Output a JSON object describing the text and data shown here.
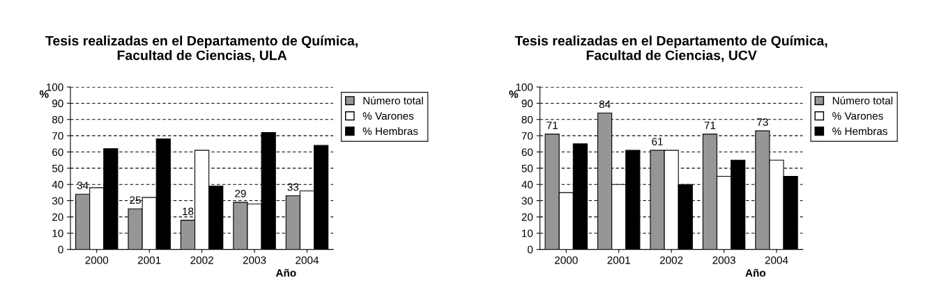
{
  "chart_data": [
    {
      "type": "bar",
      "title": "Tesis realizadas en el Departamento de Química,\nFacultad de Ciencias, ULA",
      "xlabel": "Año",
      "ylabel": "%",
      "categories": [
        "2000",
        "2001",
        "2002",
        "2003",
        "2004"
      ],
      "series": [
        {
          "name": "Número total",
          "color": "#969696",
          "values": [
            34,
            25,
            18,
            29,
            33
          ],
          "value_labels": [
            "34",
            "25",
            "18",
            "29",
            "33"
          ]
        },
        {
          "name": "% Varones",
          "color": "#ffffff",
          "values": [
            38,
            32,
            61,
            28,
            36
          ]
        },
        {
          "name": "% Hembras",
          "color": "#000000",
          "values": [
            62,
            68,
            39,
            72,
            64
          ]
        }
      ],
      "ylim": [
        0,
        100
      ],
      "yticks": [
        0,
        10,
        20,
        30,
        40,
        50,
        60,
        70,
        80,
        90,
        100
      ],
      "grid": "y",
      "legend": "top right"
    },
    {
      "type": "bar",
      "title": "Tesis realizadas en el Departamento de Química,\nFacultad de Ciencias, UCV",
      "xlabel": "Año",
      "ylabel": "%",
      "categories": [
        "2000",
        "2001",
        "2002",
        "2003",
        "2004"
      ],
      "series": [
        {
          "name": "Número total",
          "color": "#969696",
          "values": [
            71,
            84,
            61,
            71,
            73
          ],
          "value_labels": [
            "71",
            "84",
            "61",
            "71",
            "73"
          ]
        },
        {
          "name": "% Varones",
          "color": "#ffffff",
          "values": [
            35,
            40,
            61,
            45,
            55
          ]
        },
        {
          "name": "% Hembras",
          "color": "#000000",
          "values": [
            65,
            61,
            40,
            55,
            45
          ]
        }
      ],
      "ylim": [
        0,
        100
      ],
      "yticks": [
        0,
        10,
        20,
        30,
        40,
        50,
        60,
        70,
        80,
        90,
        100
      ],
      "grid": "y",
      "legend": "top right"
    }
  ]
}
